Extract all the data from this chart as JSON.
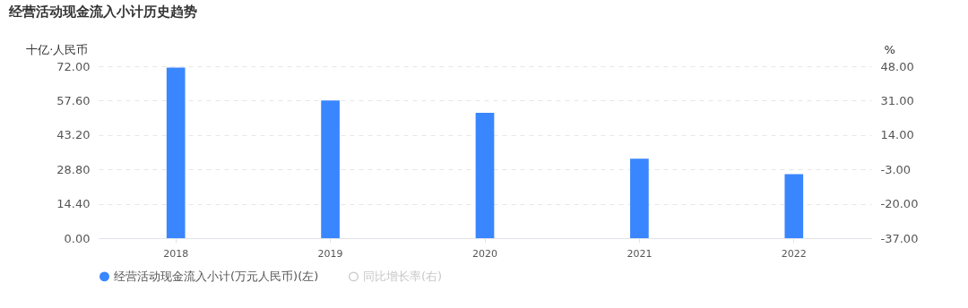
{
  "chart_data": {
    "type": "bar",
    "title": "经营活动现金流入小计历史趋势",
    "ylabel": "十亿·人民币",
    "y2label": "%",
    "categories": [
      "2018",
      "2019",
      "2020",
      "2021",
      "2022"
    ],
    "series": [
      {
        "name": "经营活动现金流入小计(万元人民币)(左)",
        "color": "#3a86ff",
        "values": [
          71.4,
          57.7,
          52.5,
          33.3,
          26.8
        ]
      },
      {
        "name": "同比增长率(右)",
        "axis": "y2",
        "color": "#cccccc",
        "values": [
          null,
          null,
          null,
          null,
          null
        ]
      }
    ],
    "ylim": [
      0,
      72
    ],
    "yticks": [
      {
        "value": 0,
        "label": "0.00"
      },
      {
        "value": 14.4,
        "label": "14.40"
      },
      {
        "value": 28.8,
        "label": "28.80"
      },
      {
        "value": 43.2,
        "label": "43.20"
      },
      {
        "value": 57.6,
        "label": "57.60"
      },
      {
        "value": 72,
        "label": "72.00"
      }
    ],
    "y2lim": [
      -37,
      48
    ],
    "y2ticks": [
      {
        "value": -37,
        "label": "-37.00"
      },
      {
        "value": -20,
        "label": "-20.00"
      },
      {
        "value": -3,
        "label": "-3.00"
      },
      {
        "value": 14,
        "label": "14.00"
      },
      {
        "value": 31,
        "label": "31.00"
      },
      {
        "value": 48,
        "label": "48.00"
      }
    ],
    "grid": "y",
    "legend": "bottom"
  }
}
